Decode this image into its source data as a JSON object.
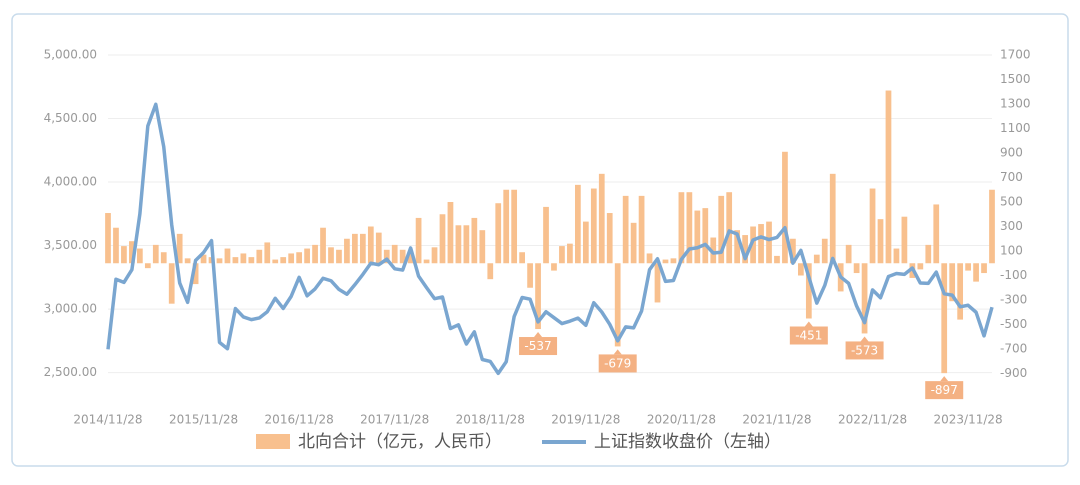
{
  "chart_data": {
    "type": "combo",
    "categories": [
      "2014/11/28",
      null,
      null,
      null,
      null,
      null,
      null,
      null,
      null,
      null,
      null,
      null,
      "2015/11/28",
      null,
      null,
      null,
      null,
      null,
      null,
      null,
      null,
      null,
      null,
      null,
      "2016/11/28",
      null,
      null,
      null,
      null,
      null,
      null,
      null,
      null,
      null,
      null,
      null,
      "2017/11/28",
      null,
      null,
      null,
      null,
      null,
      null,
      null,
      null,
      null,
      null,
      null,
      "2018/11/28",
      null,
      null,
      null,
      null,
      null,
      null,
      null,
      null,
      null,
      null,
      null,
      "2019/11/28",
      null,
      null,
      null,
      null,
      null,
      null,
      null,
      null,
      null,
      null,
      null,
      "2020/11/28",
      null,
      null,
      null,
      null,
      null,
      null,
      null,
      null,
      null,
      null,
      null,
      "2021/11/28",
      null,
      null,
      null,
      null,
      null,
      null,
      null,
      null,
      null,
      null,
      null,
      "2022/11/28",
      null,
      null,
      null,
      null,
      null,
      null,
      null,
      null,
      null,
      null,
      null,
      "2023/11/28",
      null,
      null,
      null
    ],
    "series": [
      {
        "name": "北向合计（亿元，人民币）",
        "type": "bar",
        "axis": "y2",
        "color": "#f8c08e",
        "values": [
          410,
          290,
          140,
          180,
          120,
          -40,
          150,
          90,
          -330,
          240,
          40,
          -170,
          70,
          50,
          40,
          120,
          50,
          80,
          50,
          110,
          170,
          30,
          50,
          80,
          90,
          120,
          150,
          290,
          130,
          110,
          200,
          240,
          240,
          300,
          250,
          110,
          150,
          110,
          90,
          370,
          30,
          130,
          400,
          500,
          310,
          310,
          370,
          270,
          -130,
          490,
          600,
          600,
          90,
          -200,
          -537,
          460,
          -60,
          140,
          160,
          640,
          340,
          610,
          730,
          410,
          -679,
          550,
          330,
          550,
          80,
          -320,
          30,
          40,
          580,
          580,
          430,
          450,
          210,
          550,
          580,
          270,
          230,
          300,
          320,
          340,
          60,
          910,
          200,
          -100,
          -451,
          70,
          200,
          730,
          -230,
          150,
          -80,
          -573,
          610,
          360,
          1410,
          120,
          380,
          -120,
          -50,
          150,
          480,
          -897,
          -310,
          -460,
          -60,
          -150,
          -80,
          600
        ],
        "value_labels": [
          null,
          null,
          null,
          null,
          null,
          null,
          null,
          null,
          null,
          null,
          null,
          null,
          null,
          null,
          null,
          null,
          null,
          null,
          null,
          null,
          null,
          null,
          null,
          null,
          null,
          null,
          null,
          null,
          null,
          null,
          null,
          null,
          null,
          null,
          null,
          null,
          null,
          null,
          null,
          null,
          null,
          null,
          null,
          null,
          null,
          null,
          null,
          null,
          null,
          null,
          null,
          null,
          null,
          null,
          "-537",
          null,
          null,
          null,
          null,
          null,
          null,
          null,
          null,
          null,
          "-679",
          null,
          null,
          null,
          null,
          null,
          null,
          null,
          null,
          null,
          null,
          null,
          null,
          null,
          null,
          null,
          null,
          null,
          null,
          null,
          null,
          null,
          null,
          null,
          "-451",
          null,
          null,
          null,
          null,
          null,
          null,
          "-573",
          null,
          null,
          null,
          null,
          null,
          null,
          null,
          null,
          null,
          "-897",
          null,
          null,
          null,
          null,
          null,
          null
        ]
      },
      {
        "name": "上证指数收盘价（左轴）",
        "type": "line",
        "axis": "y",
        "color": "#7aa6d0",
        "values": [
          2683,
          3235,
          3210,
          3310,
          3748,
          4441,
          4612,
          4277,
          3664,
          3206,
          3053,
          3383,
          3445,
          3539,
          2738,
          2688,
          3004,
          2938,
          2917,
          2930,
          2979,
          3085,
          3005,
          3100,
          3250,
          3104,
          3159,
          3242,
          3223,
          3155,
          3117,
          3192,
          3273,
          3361,
          3349,
          3393,
          3317,
          3307,
          3481,
          3259,
          3169,
          3082,
          3095,
          2847,
          2876,
          2725,
          2821,
          2603,
          2588,
          2494,
          2585,
          2941,
          3091,
          3078,
          2899,
          2979,
          2932,
          2886,
          2905,
          2929,
          2872,
          3050,
          2977,
          2880,
          2750,
          2860,
          2852,
          2985,
          3310,
          3396,
          3218,
          3225,
          3392,
          3473,
          3483,
          3509,
          3441,
          3447,
          3615,
          3591,
          3397,
          3544,
          3568,
          3547,
          3564,
          3640,
          3361,
          3462,
          3252,
          3047,
          3186,
          3399,
          3253,
          3202,
          3024,
          2893,
          3151,
          3089,
          3256,
          3280,
          3273,
          3323,
          3205,
          3202,
          3291,
          3120,
          3110,
          3018,
          3030,
          2975,
          2789,
          3015
        ]
      }
    ],
    "ylim": [
      2300,
      5000
    ],
    "yticks": [
      {
        "value": 2500,
        "label": "2,500.00"
      },
      {
        "value": 3000,
        "label": "3,000.00"
      },
      {
        "value": 3500,
        "label": "3,500.00"
      },
      {
        "value": 4000,
        "label": "4,000.00"
      },
      {
        "value": 4500,
        "label": "4,500.00"
      },
      {
        "value": 5000,
        "label": "5,000.00"
      }
    ],
    "y2lim": [
      -1100,
      1700
    ],
    "y2ticks": [
      -900,
      -700,
      -500,
      -300,
      -100,
      100,
      300,
      500,
      700,
      900,
      1100,
      1300,
      1500,
      1700
    ],
    "grid": true
  }
}
